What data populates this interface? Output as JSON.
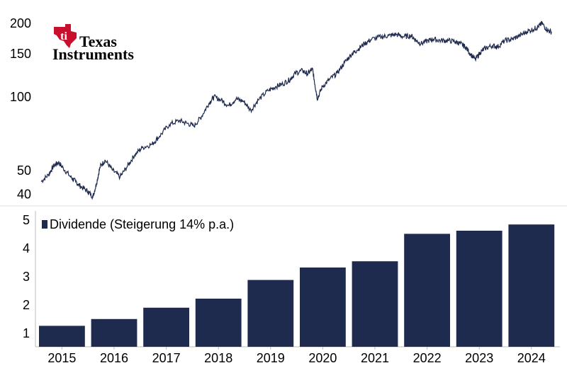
{
  "brand": {
    "logo_line1": "Texas",
    "logo_line2": "Instruments",
    "logo_color": "#c8102e"
  },
  "chart_data": [
    {
      "type": "line",
      "title": "",
      "xlabel": "",
      "ylabel": "",
      "y_scale": "log",
      "ylim": [
        38,
        215
      ],
      "xlim": [
        2014.6,
        2025.0
      ],
      "y_ticks": [
        200,
        150,
        100,
        50,
        40
      ],
      "grid": false,
      "series": [
        {
          "color": "#1f2a4f",
          "x": [
            2014.6,
            2014.75,
            2014.85,
            2014.95,
            2015.05,
            2015.2,
            2015.3,
            2015.4,
            2015.55,
            2015.65,
            2015.72,
            2015.8,
            2015.9,
            2016.05,
            2016.2,
            2016.35,
            2016.5,
            2016.65,
            2016.85,
            2017.0,
            2017.2,
            2017.4,
            2017.55,
            2017.7,
            2017.85,
            2018.0,
            2018.1,
            2018.25,
            2018.4,
            2018.55,
            2018.7,
            2018.85,
            2019.0,
            2019.2,
            2019.35,
            2019.5,
            2019.65,
            2019.75,
            2019.9,
            2020.0,
            2020.1,
            2020.15,
            2020.2,
            2020.3,
            2020.45,
            2020.6,
            2020.75,
            2020.9,
            2021.0,
            2021.15,
            2021.3,
            2021.5,
            2021.65,
            2021.8,
            2021.95,
            2022.1,
            2022.2,
            2022.3,
            2022.45,
            2022.55,
            2022.7,
            2022.85,
            2023.0,
            2023.1,
            2023.2,
            2023.3,
            2023.4,
            2023.5,
            2023.6,
            2023.75,
            2023.85,
            2024.0,
            2024.15,
            2024.3,
            2024.45,
            2024.6,
            2024.68,
            2024.75,
            2024.85,
            2024.95
          ],
          "y": [
            45,
            48,
            52,
            54,
            51,
            47,
            45,
            43,
            41,
            39,
            44,
            52,
            55,
            50,
            47,
            52,
            58,
            62,
            64,
            69,
            77,
            80,
            78,
            76,
            83,
            94,
            100,
            97,
            92,
            98,
            96,
            88,
            97,
            106,
            110,
            113,
            118,
            125,
            128,
            124,
            130,
            112,
            98,
            110,
            118,
            125,
            138,
            150,
            155,
            165,
            172,
            176,
            178,
            180,
            176,
            178,
            170,
            165,
            170,
            172,
            170,
            170,
            168,
            165,
            160,
            150,
            142,
            152,
            158,
            162,
            160,
            170,
            172,
            178,
            185,
            190,
            194,
            200,
            188,
            184
          ]
        }
      ]
    },
    {
      "type": "bar",
      "title": "",
      "xlabel": "",
      "ylabel": "",
      "ylim": [
        0.5,
        5.3
      ],
      "y_ticks": [
        5,
        4,
        3,
        2,
        1
      ],
      "grid": false,
      "legend": {
        "label": "Dividende (Steigerung 14% p.a.)",
        "placement": "top-left"
      },
      "categories": [
        "2015",
        "2016",
        "2017",
        "2018",
        "2019",
        "2020",
        "2021",
        "2022",
        "2023",
        "2024"
      ],
      "series": [
        {
          "name": "Dividende (Steigerung 14% p.a.)",
          "color": "#1f2a4f",
          "values": [
            1.24,
            1.48,
            1.88,
            2.2,
            2.86,
            3.3,
            3.52,
            4.49,
            4.6,
            4.82
          ]
        }
      ]
    }
  ]
}
